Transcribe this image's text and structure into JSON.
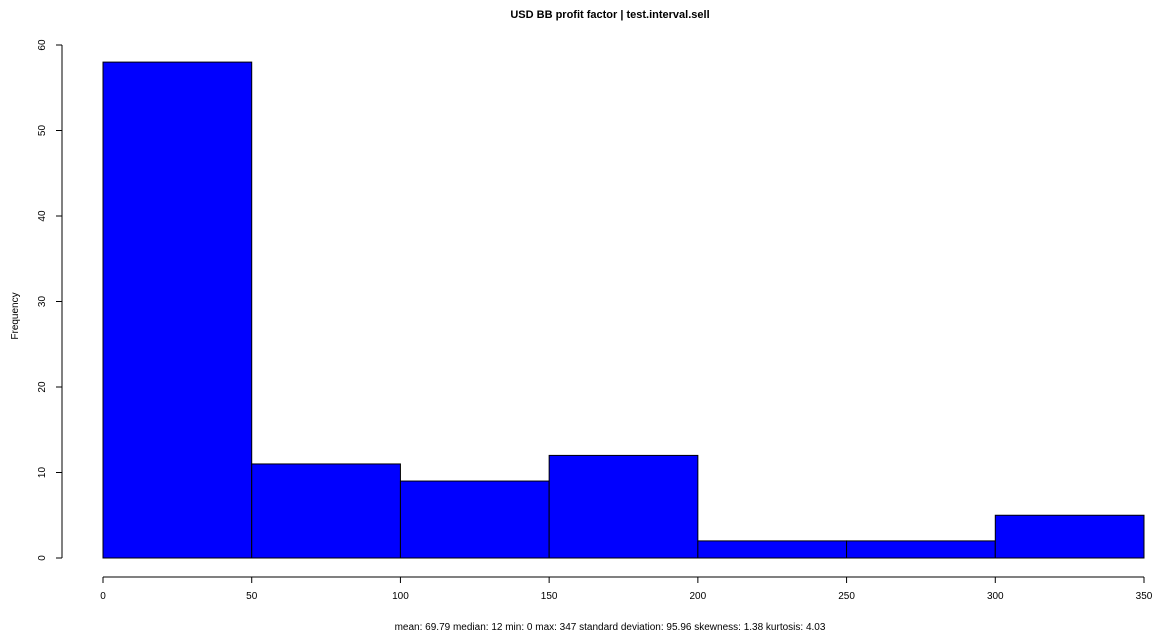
{
  "chart_data": {
    "type": "bar",
    "subtype": "histogram",
    "title": "USD BB profit factor | test.interval.sell",
    "xlabel": "mean: 69.79 median: 12 min: 0 max: 347 standard deviation: 95.96 skewness: 1.38 kurtosis: 4.03",
    "ylabel": "Frequency",
    "bins": [
      {
        "from": 0,
        "to": 50,
        "count": 58
      },
      {
        "from": 50,
        "to": 100,
        "count": 11
      },
      {
        "from": 100,
        "to": 150,
        "count": 9
      },
      {
        "from": 150,
        "to": 200,
        "count": 12
      },
      {
        "from": 200,
        "to": 250,
        "count": 2
      },
      {
        "from": 250,
        "to": 300,
        "count": 2
      },
      {
        "from": 300,
        "to": 350,
        "count": 5
      }
    ],
    "xlim": [
      0,
      350
    ],
    "ylim": [
      0,
      60
    ],
    "x_ticks": [
      "0",
      "50",
      "100",
      "150",
      "200",
      "250",
      "300",
      "350"
    ],
    "y_ticks": [
      "0",
      "10",
      "20",
      "30",
      "40",
      "50",
      "60"
    ],
    "bar_color": "#0000ff",
    "grid": false,
    "legend": "none"
  }
}
